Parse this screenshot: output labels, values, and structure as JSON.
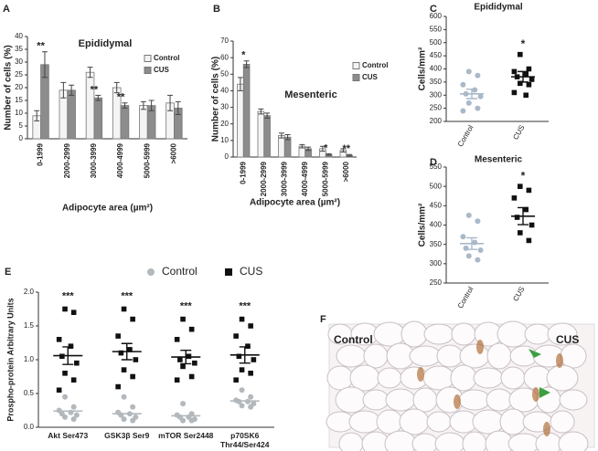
{
  "chart_data": [
    {
      "type": "bar",
      "panel": "A",
      "title": "Epididymal",
      "xlabel": "Adipocyte area (µm²)",
      "ylabel": "Number of cells (%)",
      "categories": [
        "0-1999",
        "2000-2999",
        "3000-3999",
        "4000-4999",
        "5000-5999",
        ">6000"
      ],
      "ylim": [
        0,
        40
      ],
      "yticks": [
        0,
        5,
        10,
        15,
        20,
        25,
        30,
        35,
        40
      ],
      "series": [
        {
          "name": "Control",
          "color": "#f4f4f4",
          "values": [
            9,
            19,
            26,
            20,
            13,
            14
          ],
          "errors": [
            2,
            3,
            2,
            2,
            1.5,
            3
          ]
        },
        {
          "name": "CUS",
          "color": "#8c8c8c",
          "values": [
            29,
            19,
            16,
            13,
            13,
            12
          ],
          "errors": [
            5,
            2,
            1,
            1,
            2,
            2.5
          ],
          "annotations": [
            "**",
            null,
            "**",
            "**",
            null,
            null
          ]
        }
      ]
    },
    {
      "type": "bar",
      "panel": "B",
      "title": "Mesenteric",
      "xlabel": "Adipocyte area (µm²)",
      "ylabel": "Number of cells (%)",
      "categories": [
        "0-1999",
        "2000-2999",
        "3000-3999",
        "4000-4999",
        "5000-5999",
        ">6000"
      ],
      "ylim": [
        0,
        70
      ],
      "yticks": [
        0,
        10,
        20,
        30,
        40,
        50,
        60,
        70
      ],
      "series": [
        {
          "name": "Control",
          "color": "#f4f4f4",
          "values": [
            44,
            27.5,
            13,
            6.5,
            5,
            4
          ],
          "errors": [
            4,
            1.5,
            1.5,
            1,
            1.5,
            1
          ]
        },
        {
          "name": "CUS",
          "color": "#8c8c8c",
          "values": [
            56,
            25,
            12,
            5,
            1.5,
            1
          ],
          "errors": [
            2,
            1.5,
            1.5,
            1,
            0.5,
            0.5
          ],
          "annotations": [
            "*",
            null,
            null,
            null,
            "*",
            "**"
          ]
        }
      ]
    },
    {
      "type": "dot",
      "panel": "C",
      "title": "Epididymal",
      "ylabel": "Cells/mm²",
      "categories": [
        "Control",
        "CUS"
      ],
      "colors": [
        "#a9b9c9",
        "#111111"
      ],
      "markers": [
        "circle",
        "square"
      ],
      "ylim": [
        200,
        600
      ],
      "yticks": [
        200,
        250,
        300,
        350,
        400,
        450,
        500,
        550,
        600
      ],
      "values": [
        [
          390,
          375,
          340,
          320,
          305,
          295,
          270,
          250,
          240
        ],
        [
          455,
          400,
          390,
          380,
          370,
          360,
          345,
          340,
          310,
          300
        ]
      ],
      "means": [
        305,
        370
      ],
      "sems": [
        18,
        20
      ],
      "annotations": [
        null,
        "*"
      ]
    },
    {
      "type": "dot",
      "panel": "D",
      "title": "Mesenteric",
      "ylabel": "Cells/mm²",
      "categories": [
        "Control",
        "CUS"
      ],
      "colors": [
        "#a9b9c9",
        "#111111"
      ],
      "markers": [
        "circle",
        "square"
      ],
      "ylim": [
        250,
        550
      ],
      "yticks": [
        250,
        300,
        350,
        400,
        450,
        500,
        550
      ],
      "values": [
        [
          425,
          410,
          370,
          355,
          340,
          335,
          320,
          310
        ],
        [
          500,
          490,
          470,
          440,
          420,
          400,
          380,
          360
        ]
      ],
      "means": [
        352,
        423
      ],
      "sems": [
        15,
        22
      ],
      "annotations": [
        null,
        "*"
      ]
    },
    {
      "type": "dot",
      "panel": "E",
      "ylabel": "Prospho-protein Arbitrary Units",
      "categories": [
        "Akt Ser473",
        "GSK3β Ser9",
        "mTOR Ser2448",
        "p70SK6 Thr44/Ser424"
      ],
      "ylim": [
        0,
        2
      ],
      "yticks": [
        {
          "value": 0,
          "label": "0.0"
        },
        0.5,
        {
          "value": 1,
          "label": "1.0"
        },
        1.5,
        {
          "value": 2,
          "label": "2.0"
        }
      ],
      "annotations": [
        "***",
        "***",
        "***",
        "***"
      ],
      "series": [
        {
          "name": "Control",
          "color": "#b3b8bd",
          "marker": "circle",
          "values": [
            [
              0.45,
              0.3,
              0.25,
              0.22,
              0.2,
              0.18,
              0.15,
              0.12
            ],
            [
              0.45,
              0.3,
              0.22,
              0.2,
              0.18,
              0.15,
              0.12,
              0.1
            ],
            [
              0.35,
              0.2,
              0.18,
              0.15,
              0.15,
              0.12,
              0.1,
              0.1
            ],
            [
              0.55,
              0.45,
              0.4,
              0.38,
              0.38,
              0.35,
              0.32,
              0.3
            ]
          ],
          "means": [
            0.24,
            0.2,
            0.17,
            0.39
          ]
        },
        {
          "name": "CUS",
          "color": "#111111",
          "marker": "square",
          "values": [
            [
              1.75,
              1.7,
              1.3,
              1.2,
              1.05,
              0.95,
              0.8,
              0.7,
              0.55
            ],
            [
              1.75,
              1.6,
              1.35,
              1.15,
              1.1,
              1.0,
              0.85,
              0.75,
              0.6
            ],
            [
              1.6,
              1.45,
              1.3,
              1.05,
              1.0,
              0.95,
              0.9,
              0.75,
              0.7
            ],
            [
              1.6,
              1.5,
              1.35,
              1.2,
              1.05,
              1.0,
              0.85,
              0.8,
              0.7
            ]
          ],
          "means": [
            1.06,
            1.12,
            1.04,
            1.07
          ],
          "sems": [
            0.13,
            0.12,
            0.1,
            0.12
          ]
        }
      ]
    }
  ],
  "image_panel": {
    "label": "F",
    "left_label": "Control",
    "right_label": "CUS"
  }
}
